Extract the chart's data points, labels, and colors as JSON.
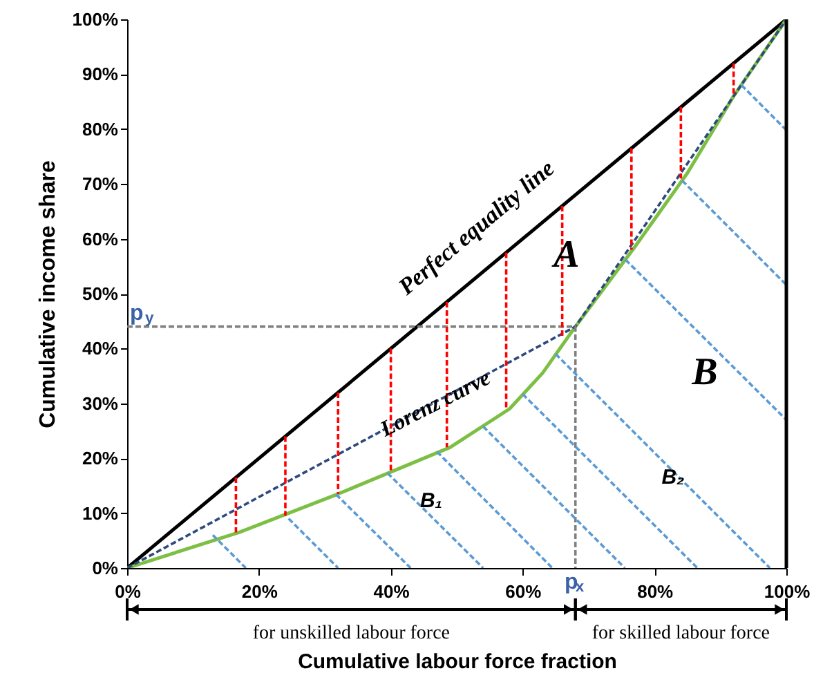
{
  "chart_data": {
    "type": "line",
    "xlabel": "Cumulative labour force fraction",
    "ylabel": "Cumulative income share",
    "xlim": [
      0,
      100
    ],
    "ylim": [
      0,
      100
    ],
    "xticks": [
      {
        "value": 0,
        "label": "0%"
      },
      {
        "value": 20,
        "label": "20%"
      },
      {
        "value": 40,
        "label": "40%"
      },
      {
        "value": 60,
        "label": "60%"
      },
      {
        "value": 80,
        "label": "80%"
      },
      {
        "value": 100,
        "label": "100%"
      }
    ],
    "yticks": [
      {
        "value": 0,
        "label": "0%"
      },
      {
        "value": 10,
        "label": "10%"
      },
      {
        "value": 20,
        "label": "20%"
      },
      {
        "value": 30,
        "label": "30%"
      },
      {
        "value": 40,
        "label": "40%"
      },
      {
        "value": 50,
        "label": "50%"
      },
      {
        "value": 60,
        "label": "60%"
      },
      {
        "value": 70,
        "label": "70%"
      },
      {
        "value": 80,
        "label": "80%"
      },
      {
        "value": 90,
        "label": "90%"
      },
      {
        "value": 100,
        "label": "100%"
      }
    ],
    "grid": false,
    "series": [
      {
        "color": "#000000",
        "line_style": "solid",
        "x": [
          0,
          100
        ],
        "values": [
          0,
          100
        ]
      },
      {
        "color": "#7dbf45",
        "line_style": "solid",
        "x": [
          0,
          17,
          32,
          49,
          58,
          63,
          68,
          77,
          85,
          92,
          100
        ],
        "values": [
          0,
          6.5,
          13.5,
          22,
          29,
          35.5,
          44,
          58.5,
          72,
          86,
          100
        ]
      },
      {
        "color": "#2e4a7d",
        "line_style": "dashed",
        "x": [
          0,
          68,
          100
        ],
        "values": [
          0,
          44,
          100
        ]
      },
      {
        "color": "#808080",
        "line_style": "dashed",
        "x": [
          0,
          68,
          68
        ],
        "values": [
          44,
          44,
          0
        ]
      },
      {
        "color": "#ff0000",
        "line_style": "dashed",
        "x": [
          16.5,
          16.5
        ],
        "values": [
          16.5,
          6.5
        ]
      },
      {
        "color": "#ff0000",
        "line_style": "dashed",
        "x": [
          24,
          24
        ],
        "values": [
          24,
          9.5
        ]
      },
      {
        "color": "#ff0000",
        "line_style": "dashed",
        "x": [
          32,
          32
        ],
        "values": [
          32,
          13.5
        ]
      },
      {
        "color": "#ff0000",
        "line_style": "dashed",
        "x": [
          40,
          40
        ],
        "values": [
          40,
          17.5
        ]
      },
      {
        "color": "#ff0000",
        "line_style": "dashed",
        "x": [
          48.5,
          48.5
        ],
        "values": [
          48.5,
          22
        ]
      },
      {
        "color": "#ff0000",
        "line_style": "dashed",
        "x": [
          57.5,
          57.5
        ],
        "values": [
          57.5,
          29
        ]
      },
      {
        "color": "#ff0000",
        "line_style": "dashed",
        "x": [
          66,
          66
        ],
        "values": [
          66,
          42
        ]
      },
      {
        "color": "#ff0000",
        "line_style": "dashed",
        "x": [
          76.5,
          76.5
        ],
        "values": [
          76.5,
          58
        ]
      },
      {
        "color": "#ff0000",
        "line_style": "dashed",
        "x": [
          84,
          84
        ],
        "values": [
          84,
          71
        ]
      },
      {
        "color": "#ff0000",
        "line_style": "dashed",
        "x": [
          92,
          92
        ],
        "values": [
          92,
          86
        ]
      },
      {
        "color": "#5b9bd5",
        "line_style": "dashed",
        "x": [
          13,
          18
        ],
        "values": [
          6,
          0
        ]
      },
      {
        "color": "#5b9bd5",
        "line_style": "dashed",
        "x": [
          24.5,
          32
        ],
        "values": [
          9,
          0
        ]
      },
      {
        "color": "#5b9bd5",
        "line_style": "dashed",
        "x": [
          31.7,
          43
        ],
        "values": [
          13.4,
          0
        ]
      },
      {
        "color": "#5b9bd5",
        "line_style": "dashed",
        "x": [
          39.5,
          54
        ],
        "values": [
          17.3,
          0
        ]
      },
      {
        "color": "#5b9bd5",
        "line_style": "dashed",
        "x": [
          47,
          64.5
        ],
        "values": [
          21.2,
          0
        ]
      },
      {
        "color": "#5b9bd5",
        "line_style": "dashed",
        "x": [
          54,
          75.5
        ],
        "values": [
          25.8,
          0
        ]
      },
      {
        "color": "#5b9bd5",
        "line_style": "dashed",
        "x": [
          60,
          86.5
        ],
        "values": [
          31.7,
          0
        ]
      },
      {
        "color": "#5b9bd5",
        "line_style": "dashed",
        "x": [
          65,
          97.5
        ],
        "values": [
          39,
          0
        ]
      },
      {
        "color": "#5b9bd5",
        "line_style": "dashed",
        "x": [
          75.6,
          100
        ],
        "values": [
          56.2,
          27
        ]
      },
      {
        "color": "#5b9bd5",
        "line_style": "dashed",
        "x": [
          84.2,
          100
        ],
        "values": [
          70.6,
          51.6
        ]
      },
      {
        "color": "#5b9bd5",
        "line_style": "dashed",
        "x": [
          93.2,
          100
        ],
        "values": [
          88,
          79.8
        ]
      }
    ],
    "ref_lines": [
      {
        "axis": "x",
        "value": 100,
        "color": "#000000"
      }
    ],
    "annotations": [
      "Perfect equality line",
      "Lorenz curve",
      "A",
      "B",
      "B₁",
      "B₂",
      {
        "text": "p$_{y}$",
        "x": 0,
        "y": 44
      },
      {
        "text": "p$_{x}$",
        "x": 68,
        "y": 0
      },
      "for unskilled labour force",
      "for skilled labour force"
    ]
  }
}
